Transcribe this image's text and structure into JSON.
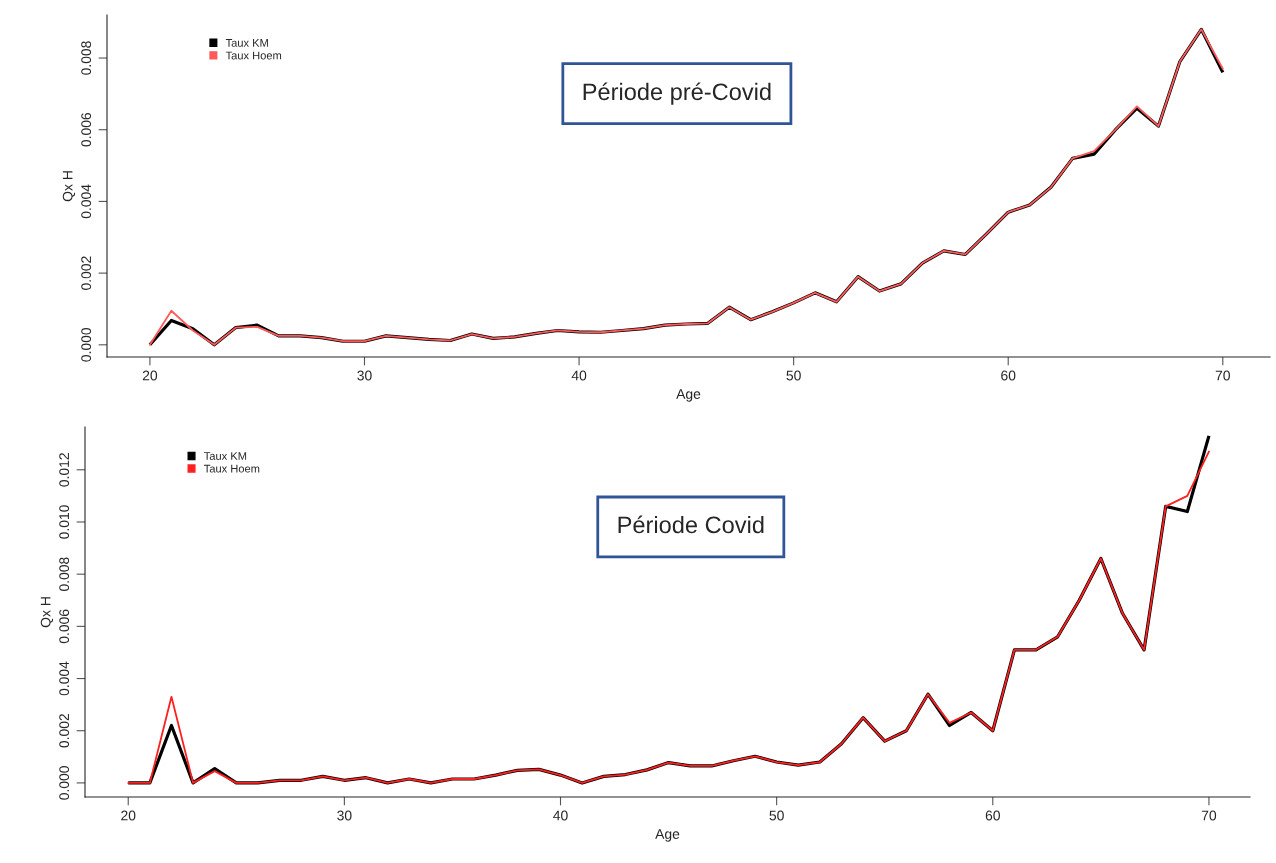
{
  "chart_data": [
    {
      "type": "line",
      "title": "Période pré-Covid",
      "xlabel": "Age",
      "ylabel": "Qx H",
      "legend": "top left",
      "grid": false,
      "x": [
        20,
        21,
        22,
        23,
        24,
        25,
        26,
        27,
        28,
        29,
        30,
        31,
        32,
        33,
        34,
        35,
        36,
        37,
        38,
        39,
        40,
        41,
        42,
        43,
        44,
        45,
        46,
        47,
        48,
        49,
        50,
        51,
        52,
        53,
        54,
        55,
        56,
        57,
        58,
        59,
        60,
        61,
        62,
        63,
        64,
        65,
        66,
        67,
        68,
        69,
        70
      ],
      "xlim": [
        18,
        72.2
      ],
      "xticks": [
        20,
        30,
        40,
        50,
        60,
        70
      ],
      "ylim": [
        -0.00034,
        0.0092
      ],
      "yticks": [
        {
          "value": 0,
          "label": "0.000"
        },
        {
          "value": 0.002,
          "label": "0.002"
        },
        {
          "value": 0.004,
          "label": "0.004"
        },
        {
          "value": 0.006,
          "label": "0.006"
        },
        {
          "value": 0.008,
          "label": "0.008"
        }
      ],
      "series": [
        {
          "name": "Taux KM",
          "color": "#000000",
          "values": [
            0,
            0.00068,
            0.00045,
            0,
            0.00048,
            0.00055,
            0.00025,
            0.00025,
            0.0002,
            0.0001,
            0.0001,
            0.00025,
            0.0002,
            0.00015,
            0.00012,
            0.0003,
            0.00018,
            0.00022,
            0.00032,
            0.0004,
            0.00036,
            0.00035,
            0.0004,
            0.00045,
            0.00055,
            0.00058,
            0.0006,
            0.00105,
            0.0007,
            0.00092,
            0.00117,
            0.00145,
            0.0012,
            0.0019,
            0.0015,
            0.0017,
            0.00228,
            0.00262,
            0.00252,
            0.0031,
            0.0037,
            0.0039,
            0.0044,
            0.0052,
            0.00532,
            0.006,
            0.0066,
            0.0061,
            0.0079,
            0.0088,
            0.0076
          ]
        },
        {
          "name": "Taux Hoem",
          "color": "#ff5a5a",
          "values": [
            0,
            0.00095,
            0.0004,
            0,
            0.00048,
            0.0005,
            0.00025,
            0.00025,
            0.0002,
            0.0001,
            0.0001,
            0.00025,
            0.0002,
            0.00015,
            0.00012,
            0.0003,
            0.00018,
            0.00022,
            0.00032,
            0.0004,
            0.00036,
            0.00035,
            0.0004,
            0.00045,
            0.00055,
            0.00058,
            0.0006,
            0.00105,
            0.0007,
            0.00092,
            0.00117,
            0.00145,
            0.0012,
            0.0019,
            0.0015,
            0.0017,
            0.00228,
            0.00262,
            0.00252,
            0.0031,
            0.0037,
            0.0039,
            0.0044,
            0.0052,
            0.0054,
            0.006,
            0.00665,
            0.0061,
            0.0079,
            0.0088,
            0.0077
          ]
        }
      ]
    },
    {
      "type": "line",
      "title": "Période Covid",
      "xlabel": "Age",
      "ylabel": "Qx H",
      "legend": "top left",
      "grid": false,
      "x": [
        20,
        21,
        22,
        23,
        24,
        25,
        26,
        27,
        28,
        29,
        30,
        31,
        32,
        33,
        34,
        35,
        36,
        37,
        38,
        39,
        40,
        41,
        42,
        43,
        44,
        45,
        46,
        47,
        48,
        49,
        50,
        51,
        52,
        53,
        54,
        55,
        56,
        57,
        58,
        59,
        60,
        61,
        62,
        63,
        64,
        65,
        66,
        67,
        68,
        69,
        70
      ],
      "xlim": [
        18,
        71.9
      ],
      "xticks": [
        20,
        30,
        40,
        50,
        60,
        70
      ],
      "ylim": [
        -0.00054,
        0.01364
      ],
      "yticks": [
        {
          "value": 0,
          "label": "0.000"
        },
        {
          "value": 0.002,
          "label": "0.002"
        },
        {
          "value": 0.004,
          "label": "0.004"
        },
        {
          "value": 0.006,
          "label": "0.006"
        },
        {
          "value": 0.008,
          "label": "0.008"
        },
        {
          "value": 0.01,
          "label": "0.010"
        },
        {
          "value": 0.012,
          "label": "0.012"
        }
      ],
      "series": [
        {
          "name": "Taux KM",
          "color": "#000000",
          "values": [
            0,
            0,
            0.0022,
            0,
            0.00055,
            0,
            0,
            0.0001,
            0.0001,
            0.00025,
            0.0001,
            0.0002,
            0,
            0.00015,
            0,
            0.00015,
            0.00015,
            0.0003,
            0.00048,
            0.00052,
            0.0003,
            0,
            0.00025,
            0.00032,
            0.0005,
            0.00078,
            0.00065,
            0.00065,
            0.00085,
            0.00102,
            0.0008,
            0.00068,
            0.0008,
            0.0015,
            0.0025,
            0.0016,
            0.002,
            0.0034,
            0.0022,
            0.0027,
            0.002,
            0.0051,
            0.0051,
            0.0056,
            0.007,
            0.0086,
            0.0065,
            0.0051,
            0.0106,
            0.0104,
            0.0133
          ]
        },
        {
          "name": "Taux Hoem",
          "color": "#ff2020",
          "values": [
            0,
            0,
            0.0033,
            0,
            0.00045,
            0,
            0,
            0.0001,
            0.0001,
            0.00025,
            0.0001,
            0.0002,
            0,
            0.00015,
            0,
            0.00015,
            0.00015,
            0.0003,
            0.00048,
            0.00052,
            0.0003,
            0,
            0.00025,
            0.00032,
            0.0005,
            0.00078,
            0.00065,
            0.00065,
            0.00085,
            0.00102,
            0.0008,
            0.00068,
            0.0008,
            0.0015,
            0.0025,
            0.0016,
            0.002,
            0.0034,
            0.0023,
            0.0027,
            0.002,
            0.0051,
            0.0051,
            0.0056,
            0.007,
            0.0086,
            0.0065,
            0.0051,
            0.0106,
            0.011,
            0.0127
          ]
        }
      ]
    }
  ]
}
